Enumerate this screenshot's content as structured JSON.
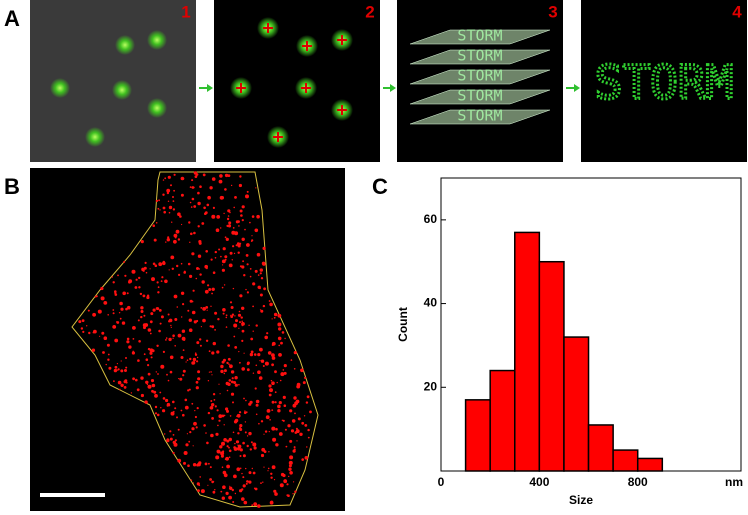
{
  "figure": {
    "panel_labels": [
      "A",
      "B",
      "C"
    ],
    "step_numbers": [
      "1",
      "2",
      "3",
      "4"
    ],
    "storm_text": "STORM"
  },
  "chart_data": {
    "type": "histogram",
    "bins": [
      100,
      200,
      300,
      400,
      500,
      600,
      700,
      800,
      900
    ],
    "values": [
      17,
      24,
      57,
      50,
      32,
      11,
      5,
      3
    ],
    "color": "#ff0000",
    "xlabel": "Size",
    "ylabel": "Count",
    "x_unit": "nm",
    "xlim": [
      0,
      1220
    ],
    "ylim": [
      0,
      70
    ],
    "xticks": [
      0,
      400,
      800
    ],
    "yticks": [
      20,
      40,
      60
    ]
  }
}
